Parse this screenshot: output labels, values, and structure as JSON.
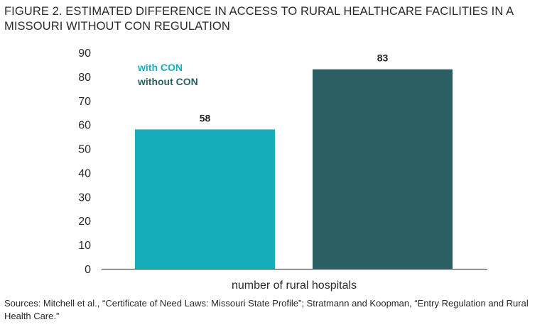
{
  "figure": {
    "title": "FIGURE 2. ESTIMATED DIFFERENCE IN ACCESS TO RURAL HEALTHCARE FACILITIES IN A MISSOURI WITHOUT CON REGULATION",
    "source": "Sources: Mitchell et al., “Certificate of Need Laws: Missouri State Profile”; Stratmann and Koopman, “Entry Regulation and Rural Health Care.”"
  },
  "chart_data": {
    "type": "bar",
    "categories": [
      "number of rural hospitals"
    ],
    "series": [
      {
        "name": "with CON",
        "values": [
          58
        ],
        "color": "#17aebb"
      },
      {
        "name": "without CON",
        "values": [
          83
        ],
        "color": "#2b5f64"
      }
    ],
    "xlabel": "number of rural hospitals",
    "ylabel": "",
    "ylim": [
      0,
      90
    ],
    "yticks": [
      0,
      10,
      20,
      30,
      40,
      50,
      60,
      70,
      80,
      90
    ],
    "grid": false,
    "legend": "top-left",
    "data_labels": true
  }
}
